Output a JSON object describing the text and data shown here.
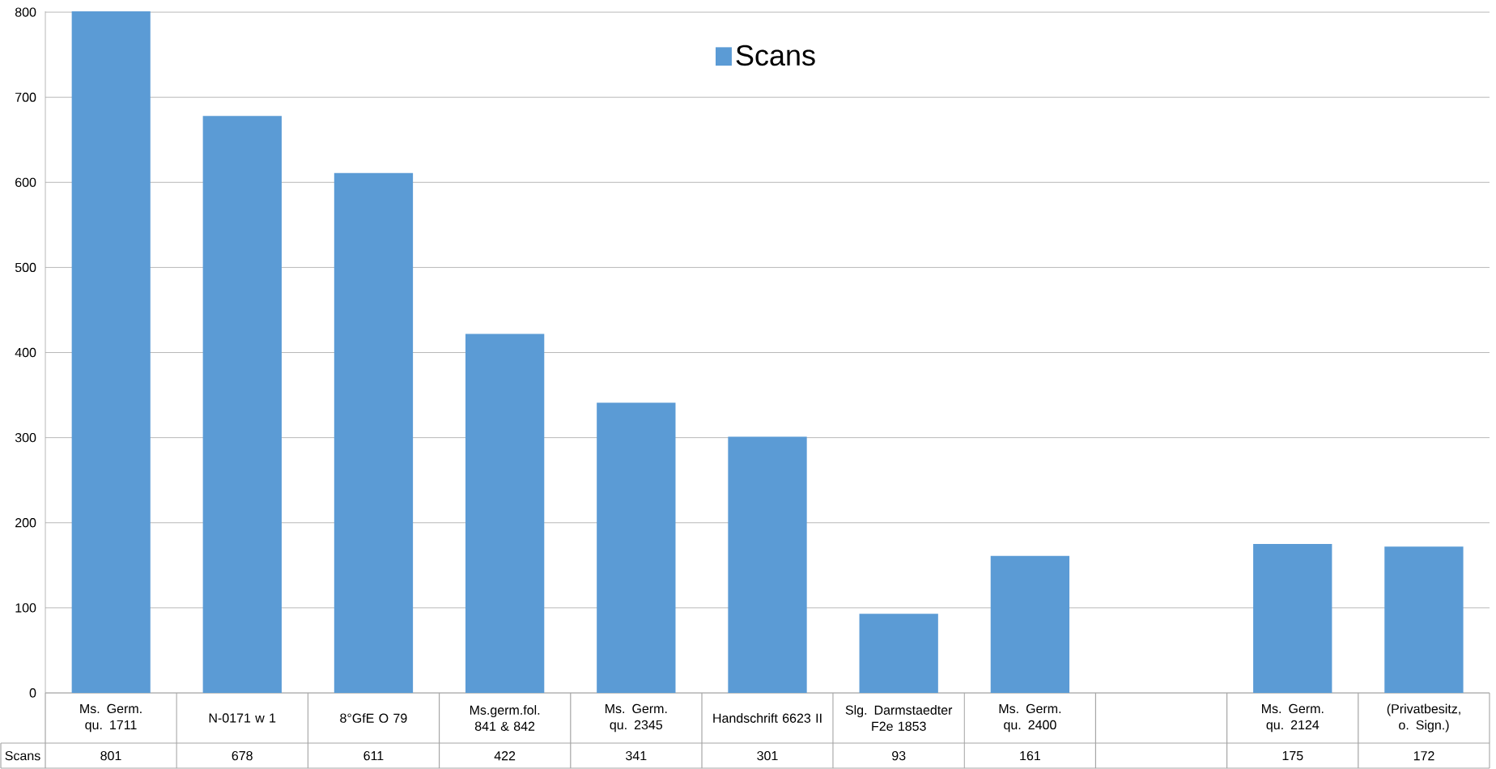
{
  "chart_data": {
    "type": "bar",
    "categories": [
      "Ms. Germ. qu. 1711",
      "N-0171 w 1",
      "8°GfE  O  79",
      "Ms.germ.fol. 841 & 842",
      "Ms. Germ. qu. 2345",
      "Handschrift 6623 II",
      "Slg. Darmstaedter F2e 1853",
      "Ms. Germ. qu. 2400",
      null,
      "Ms. Germ. qu. 2124",
      "(Privatbesitz, o. Sign.)"
    ],
    "series": [
      {
        "name": "Scans",
        "color": "#5b9bd5",
        "values": [
          801,
          678,
          611,
          422,
          341,
          301,
          93,
          161,
          null,
          175,
          172
        ]
      }
    ],
    "ylim": [
      0,
      801
    ],
    "yticks": [
      0,
      100,
      200,
      300,
      400,
      500,
      600,
      700,
      800
    ],
    "grid": "y",
    "legend": "top",
    "data_labels": true
  }
}
